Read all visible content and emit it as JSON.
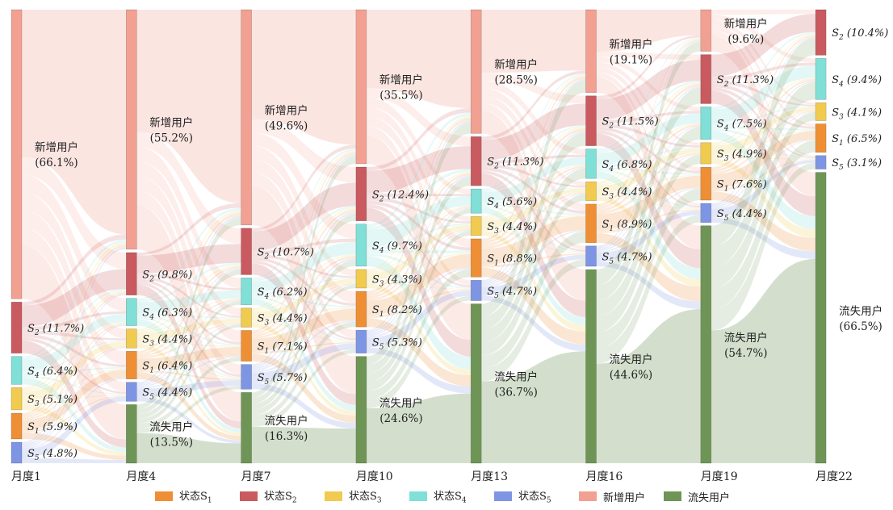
{
  "chart_data": {
    "type": "sankey",
    "columns": [
      "月度1",
      "月度4",
      "月度7",
      "月度10",
      "月度13",
      "月度16",
      "月度19",
      "月度22"
    ],
    "nodes": [
      [
        {
          "id": "new",
          "name": "新增用户",
          "pct": "66.1%",
          "value": 66.1
        },
        {
          "id": "s2",
          "name": "S2",
          "pct": "11.7%",
          "value": 11.7
        },
        {
          "id": "s4",
          "name": "S4",
          "pct": "6.4%",
          "value": 6.4
        },
        {
          "id": "s3",
          "name": "S3",
          "pct": "5.1%",
          "value": 5.1
        },
        {
          "id": "s1",
          "name": "S1",
          "pct": "5.9%",
          "value": 5.9
        },
        {
          "id": "s5",
          "name": "S5",
          "pct": "4.8%",
          "value": 4.8
        }
      ],
      [
        {
          "id": "new",
          "name": "新增用户",
          "pct": "55.2%",
          "value": 55.2
        },
        {
          "id": "s2",
          "name": "S2",
          "pct": "9.8%",
          "value": 9.8
        },
        {
          "id": "s4",
          "name": "S4",
          "pct": "6.3%",
          "value": 6.3
        },
        {
          "id": "s3",
          "name": "S3",
          "pct": "4.4%",
          "value": 4.4
        },
        {
          "id": "s1",
          "name": "S1",
          "pct": "6.4%",
          "value": 6.4
        },
        {
          "id": "s5",
          "name": "S5",
          "pct": "4.4%",
          "value": 4.4
        },
        {
          "id": "lost",
          "name": "流失用户",
          "pct": "13.5%",
          "value": 13.5
        }
      ],
      [
        {
          "id": "new",
          "name": "新增用户",
          "pct": "49.6%",
          "value": 49.6
        },
        {
          "id": "s2",
          "name": "S2",
          "pct": "10.7%",
          "value": 10.7
        },
        {
          "id": "s4",
          "name": "S4",
          "pct": "6.2%",
          "value": 6.2
        },
        {
          "id": "s3",
          "name": "S3",
          "pct": "4.4%",
          "value": 4.4
        },
        {
          "id": "s1",
          "name": "S1",
          "pct": "7.1%",
          "value": 7.1
        },
        {
          "id": "s5",
          "name": "S5",
          "pct": "5.7%",
          "value": 5.7
        },
        {
          "id": "lost",
          "name": "流失用户",
          "pct": "16.3%",
          "value": 16.3
        }
      ],
      [
        {
          "id": "new",
          "name": "新增用户",
          "pct": "35.5%",
          "value": 35.5
        },
        {
          "id": "s2",
          "name": "S2",
          "pct": "12.4%",
          "value": 12.4
        },
        {
          "id": "s4",
          "name": "S4",
          "pct": "9.7%",
          "value": 9.7
        },
        {
          "id": "s3",
          "name": "S3",
          "pct": "4.3%",
          "value": 4.3
        },
        {
          "id": "s1",
          "name": "S1",
          "pct": "8.2%",
          "value": 8.2
        },
        {
          "id": "s5",
          "name": "S5",
          "pct": "5.3%",
          "value": 5.3
        },
        {
          "id": "lost",
          "name": "流失用户",
          "pct": "24.6%",
          "value": 24.6
        }
      ],
      [
        {
          "id": "new",
          "name": "新增用户",
          "pct": "28.5%",
          "value": 28.5
        },
        {
          "id": "s2",
          "name": "S2",
          "pct": "11.3%",
          "value": 11.3
        },
        {
          "id": "s4",
          "name": "S4",
          "pct": "5.6%",
          "value": 5.6
        },
        {
          "id": "s3",
          "name": "S3",
          "pct": "4.4%",
          "value": 4.4
        },
        {
          "id": "s1",
          "name": "S1",
          "pct": "8.8%",
          "value": 8.8
        },
        {
          "id": "s5",
          "name": "S5",
          "pct": "4.7%",
          "value": 4.7
        },
        {
          "id": "lost",
          "name": "流失用户",
          "pct": "36.7%",
          "value": 36.7
        }
      ],
      [
        {
          "id": "new",
          "name": "新增用户",
          "pct": "19.1%",
          "value": 19.1
        },
        {
          "id": "s2",
          "name": "S2",
          "pct": "11.5%",
          "value": 11.5
        },
        {
          "id": "s4",
          "name": "S4",
          "pct": "6.8%",
          "value": 6.8
        },
        {
          "id": "s3",
          "name": "S3",
          "pct": "4.4%",
          "value": 4.4
        },
        {
          "id": "s1",
          "name": "S1",
          "pct": "8.9%",
          "value": 8.9
        },
        {
          "id": "s5",
          "name": "S5",
          "pct": "4.7%",
          "value": 4.7
        },
        {
          "id": "lost",
          "name": "流失用户",
          "pct": "44.6%",
          "value": 44.6
        }
      ],
      [
        {
          "id": "new",
          "name": "新增用户",
          "pct": "9.6%",
          "value": 9.6
        },
        {
          "id": "s2",
          "name": "S2",
          "pct": "11.3%",
          "value": 11.3
        },
        {
          "id": "s4",
          "name": "S4",
          "pct": "7.5%",
          "value": 7.5
        },
        {
          "id": "s3",
          "name": "S3",
          "pct": "4.9%",
          "value": 4.9
        },
        {
          "id": "s1",
          "name": "S1",
          "pct": "7.6%",
          "value": 7.6
        },
        {
          "id": "s5",
          "name": "S5",
          "pct": "4.4%",
          "value": 4.4
        },
        {
          "id": "lost",
          "name": "流失用户",
          "pct": "54.7%",
          "value": 54.7
        }
      ],
      [
        {
          "id": "s2",
          "name": "S2",
          "pct": "10.4%",
          "value": 10.4
        },
        {
          "id": "s4",
          "name": "S4",
          "pct": "9.4%",
          "value": 9.4
        },
        {
          "id": "s3",
          "name": "S3",
          "pct": "4.1%",
          "value": 4.1
        },
        {
          "id": "s1",
          "name": "S1",
          "pct": "6.5%",
          "value": 6.5
        },
        {
          "id": "s5",
          "name": "S5",
          "pct": "3.1%",
          "value": 3.1
        },
        {
          "id": "lost",
          "name": "流失用户",
          "pct": "66.5%",
          "value": 66.5
        }
      ]
    ],
    "legend": [
      {
        "id": "s1",
        "prefix": "状态S",
        "sub": "1"
      },
      {
        "id": "s2",
        "prefix": "状态S",
        "sub": "2"
      },
      {
        "id": "s3",
        "prefix": "状态S",
        "sub": "3"
      },
      {
        "id": "s4",
        "prefix": "状态S",
        "sub": "4"
      },
      {
        "id": "s5",
        "prefix": "状态S",
        "sub": "5"
      },
      {
        "id": "new",
        "prefix": "新增用户",
        "sub": ""
      },
      {
        "id": "lost",
        "prefix": "流失用户",
        "sub": ""
      }
    ],
    "colors": {
      "s1": "#ee8f36",
      "s2": "#c95a5f",
      "s3": "#f1cb4f",
      "s4": "#80dfd6",
      "s5": "#7e95e3",
      "new": "#f2a092",
      "lost": "#6e9556"
    },
    "legend_position": "bottom"
  }
}
